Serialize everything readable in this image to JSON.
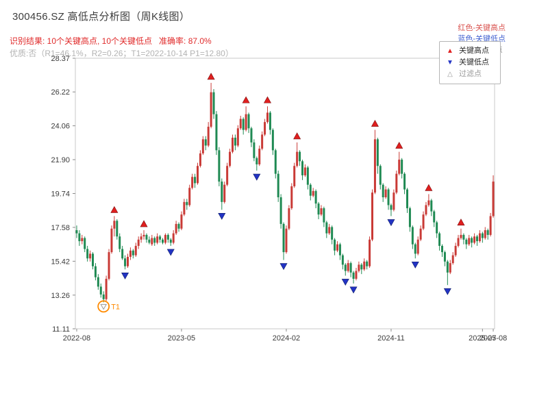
{
  "header": {
    "legend_high": "红色-关键高点",
    "legend_low": "蓝色-关键低点",
    "legend_filtered": "○浅色-过滤点",
    "result_line": "识别结果: 10个关键高点, 10个关键低点   准确率: 87.0%",
    "quality_line": "优质:否（R1=46.1%，R2=0.26；T1=2022-10-14 P1=12.80）",
    "colors": {
      "high_text": "#d9534f",
      "low_text": "#4161d0",
      "filtered_text": "#8c8c8c",
      "result_text": "#e02a2a",
      "quality_text": "#b3b3b3"
    }
  },
  "chart_data": {
    "type": "candlestick",
    "title": "300456.SZ 高低点分析图（周K线图）",
    "subtitle": "识别结果: 10个关键高点, 10个关键低点   准确率: 87.0%",
    "ylabel": "",
    "xlabel": "",
    "grid": false,
    "legend_position": "upper right",
    "ylim": [
      11.11,
      28.37
    ],
    "y_ticks": [
      11.11,
      13.26,
      15.42,
      17.58,
      19.74,
      21.9,
      24.06,
      26.22,
      28.37
    ],
    "x_ticks": [
      {
        "index": 0,
        "label": "2022-08"
      },
      {
        "index": 39,
        "label": "2023-05"
      },
      {
        "index": 78,
        "label": "2024-02"
      },
      {
        "index": 117,
        "label": "2024-11"
      },
      {
        "index": 151,
        "label": "2025-07"
      },
      {
        "index": 155,
        "label": "2025-08"
      }
    ],
    "colors": {
      "up": "#c93a36",
      "down": "#1f8a53",
      "high_marker": "#e01f1f",
      "low_marker": "#2233c4",
      "annotation": "#ff8a00",
      "axis_text": "#3a3a3a",
      "spine": "#c8c8c8"
    },
    "legend": {
      "items": [
        {
          "symbol": "▲",
          "label": "关键高点",
          "color": "#e01f1f"
        },
        {
          "symbol": "▼",
          "label": "关键低点",
          "color": "#2233c4"
        },
        {
          "symbol": "△",
          "label": "过滤点",
          "color": "#9a9a9a"
        }
      ]
    },
    "candles": [
      [
        17.4,
        17.7,
        16.9,
        17.2
      ],
      [
        17.2,
        17.4,
        16.4,
        16.7
      ],
      [
        16.7,
        17.1,
        16.5,
        16.9
      ],
      [
        16.9,
        17.0,
        16.0,
        16.2
      ],
      [
        16.2,
        16.4,
        15.4,
        15.6
      ],
      [
        15.6,
        16.1,
        15.4,
        15.9
      ],
      [
        15.9,
        16.0,
        14.9,
        15.1
      ],
      [
        15.1,
        15.3,
        14.2,
        14.4
      ],
      [
        14.4,
        14.6,
        13.6,
        13.8
      ],
      [
        13.8,
        14.0,
        13.1,
        13.3
      ],
      [
        13.3,
        13.5,
        12.8,
        13.0
      ],
      [
        13.0,
        14.5,
        12.9,
        14.3
      ],
      [
        14.3,
        16.2,
        14.2,
        16.0
      ],
      [
        16.0,
        17.7,
        15.9,
        17.5
      ],
      [
        17.5,
        18.3,
        17.0,
        18.0
      ],
      [
        18.0,
        18.1,
        16.8,
        17.0
      ],
      [
        17.0,
        17.2,
        16.0,
        16.2
      ],
      [
        16.2,
        16.4,
        15.5,
        15.6
      ],
      [
        15.6,
        15.8,
        14.9,
        15.1
      ],
      [
        15.1,
        15.9,
        15.0,
        15.7
      ],
      [
        15.7,
        16.3,
        15.5,
        16.1
      ],
      [
        16.1,
        16.2,
        15.6,
        15.8
      ],
      [
        15.8,
        16.6,
        15.7,
        16.4
      ],
      [
        16.4,
        17.0,
        16.2,
        16.8
      ],
      [
        16.8,
        17.2,
        16.6,
        17.0
      ],
      [
        17.0,
        17.4,
        16.8,
        17.1
      ],
      [
        17.1,
        17.2,
        16.6,
        16.8
      ],
      [
        16.8,
        17.0,
        16.5,
        16.6
      ],
      [
        16.5,
        17.1,
        16.4,
        16.9
      ],
      [
        16.9,
        17.0,
        16.4,
        16.6
      ],
      [
        16.6,
        17.2,
        16.5,
        17.0
      ],
      [
        17.0,
        17.1,
        16.6,
        16.8
      ],
      [
        16.8,
        16.9,
        16.5,
        16.6
      ],
      [
        16.6,
        17.2,
        16.5,
        17.1
      ],
      [
        17.1,
        17.2,
        16.6,
        16.8
      ],
      [
        16.8,
        16.9,
        16.4,
        16.6
      ],
      [
        16.6,
        17.4,
        16.5,
        17.2
      ],
      [
        17.2,
        18.0,
        17.1,
        17.8
      ],
      [
        17.8,
        17.9,
        17.3,
        17.5
      ],
      [
        17.5,
        18.6,
        17.4,
        18.4
      ],
      [
        18.4,
        19.4,
        18.3,
        19.2
      ],
      [
        19.2,
        19.4,
        18.7,
        19.0
      ],
      [
        19.0,
        20.3,
        18.9,
        20.1
      ],
      [
        20.1,
        21.0,
        20.0,
        20.8
      ],
      [
        20.8,
        21.0,
        20.1,
        20.4
      ],
      [
        20.4,
        21.7,
        20.3,
        21.5
      ],
      [
        21.5,
        22.5,
        21.4,
        22.3
      ],
      [
        22.3,
        23.4,
        22.2,
        23.2
      ],
      [
        23.2,
        23.4,
        22.5,
        22.8
      ],
      [
        22.8,
        24.3,
        22.7,
        24.0
      ],
      [
        24.0,
        26.8,
        23.9,
        26.2
      ],
      [
        26.2,
        26.4,
        24.5,
        24.8
      ],
      [
        24.8,
        25.0,
        22.2,
        22.5
      ],
      [
        22.5,
        22.7,
        20.2,
        20.5
      ],
      [
        20.5,
        20.7,
        18.7,
        19.2
      ],
      [
        19.2,
        20.5,
        19.1,
        20.3
      ],
      [
        20.3,
        21.7,
        20.2,
        21.5
      ],
      [
        21.5,
        22.6,
        21.4,
        22.4
      ],
      [
        22.4,
        23.5,
        22.3,
        23.3
      ],
      [
        23.3,
        23.5,
        22.5,
        22.8
      ],
      [
        22.8,
        24.1,
        22.7,
        23.9
      ],
      [
        23.9,
        24.7,
        23.8,
        24.5
      ],
      [
        24.5,
        24.6,
        23.5,
        23.8
      ],
      [
        23.8,
        25.3,
        23.7,
        24.8
      ],
      [
        24.8,
        24.9,
        23.6,
        23.9
      ],
      [
        23.9,
        24.0,
        22.7,
        23.0
      ],
      [
        23.0,
        23.2,
        21.8,
        22.0
      ],
      [
        22.0,
        22.1,
        21.2,
        21.6
      ],
      [
        21.6,
        22.8,
        21.5,
        22.6
      ],
      [
        22.6,
        23.7,
        22.5,
        23.5
      ],
      [
        23.5,
        24.5,
        23.4,
        24.3
      ],
      [
        24.3,
        25.3,
        24.2,
        24.9
      ],
      [
        24.9,
        25.0,
        23.5,
        23.8
      ],
      [
        23.8,
        23.9,
        22.2,
        22.5
      ],
      [
        22.5,
        22.6,
        20.7,
        21.0
      ],
      [
        21.0,
        21.2,
        19.2,
        19.5
      ],
      [
        19.5,
        19.7,
        17.5,
        17.8
      ],
      [
        17.8,
        17.9,
        15.5,
        16.0
      ],
      [
        16.0,
        17.7,
        15.9,
        17.5
      ],
      [
        17.5,
        19.0,
        17.4,
        18.8
      ],
      [
        18.8,
        20.4,
        18.7,
        20.2
      ],
      [
        20.2,
        21.7,
        20.1,
        21.5
      ],
      [
        21.5,
        23.0,
        21.4,
        22.4
      ],
      [
        22.4,
        22.5,
        21.5,
        21.8
      ],
      [
        21.8,
        21.9,
        20.6,
        20.9
      ],
      [
        20.9,
        21.6,
        20.8,
        21.4
      ],
      [
        21.4,
        21.5,
        20.0,
        20.3
      ],
      [
        20.3,
        20.4,
        19.3,
        19.6
      ],
      [
        19.6,
        20.1,
        19.5,
        19.9
      ],
      [
        19.9,
        20.0,
        18.8,
        19.1
      ],
      [
        19.1,
        19.2,
        18.1,
        18.4
      ],
      [
        18.4,
        19.0,
        18.3,
        18.8
      ],
      [
        18.8,
        18.9,
        17.6,
        17.9
      ],
      [
        17.9,
        18.0,
        16.9,
        17.2
      ],
      [
        17.2,
        17.8,
        17.1,
        17.6
      ],
      [
        17.6,
        17.7,
        16.5,
        16.8
      ],
      [
        16.8,
        16.9,
        15.8,
        16.1
      ],
      [
        16.1,
        16.7,
        16.0,
        16.5
      ],
      [
        16.5,
        16.6,
        15.5,
        15.8
      ],
      [
        15.8,
        15.9,
        14.9,
        15.2
      ],
      [
        15.2,
        15.3,
        14.5,
        14.8
      ],
      [
        14.8,
        15.5,
        14.7,
        15.3
      ],
      [
        15.3,
        15.4,
        14.4,
        14.7
      ],
      [
        14.7,
        14.8,
        14.0,
        14.3
      ],
      [
        14.3,
        15.0,
        14.2,
        14.8
      ],
      [
        14.8,
        15.4,
        14.7,
        15.2
      ],
      [
        15.2,
        15.3,
        14.6,
        14.9
      ],
      [
        14.9,
        15.6,
        14.8,
        15.4
      ],
      [
        15.4,
        15.5,
        14.9,
        15.1
      ],
      [
        15.1,
        17.0,
        15.0,
        16.8
      ],
      [
        16.8,
        20.0,
        16.7,
        19.8
      ],
      [
        19.8,
        23.8,
        19.7,
        23.2
      ],
      [
        23.2,
        23.3,
        21.0,
        21.5
      ],
      [
        21.5,
        21.6,
        20.0,
        20.3
      ],
      [
        20.3,
        20.4,
        19.2,
        19.5
      ],
      [
        19.5,
        20.2,
        19.4,
        20.0
      ],
      [
        20.0,
        20.1,
        18.7,
        19.0
      ],
      [
        19.0,
        19.1,
        18.3,
        18.7
      ],
      [
        18.7,
        20.0,
        18.6,
        19.8
      ],
      [
        19.8,
        21.2,
        19.7,
        21.0
      ],
      [
        21.0,
        22.4,
        20.9,
        21.9
      ],
      [
        21.9,
        22.0,
        20.7,
        21.0
      ],
      [
        21.0,
        21.1,
        19.7,
        20.0
      ],
      [
        20.0,
        20.1,
        18.5,
        18.8
      ],
      [
        18.8,
        18.9,
        17.3,
        17.6
      ],
      [
        17.6,
        17.7,
        16.2,
        16.5
      ],
      [
        16.5,
        16.6,
        15.6,
        15.9
      ],
      [
        15.9,
        17.0,
        15.8,
        16.8
      ],
      [
        16.8,
        17.7,
        16.7,
        17.5
      ],
      [
        17.5,
        18.6,
        17.4,
        18.4
      ],
      [
        18.4,
        19.2,
        18.3,
        19.0
      ],
      [
        19.0,
        19.7,
        18.9,
        19.3
      ],
      [
        19.3,
        19.4,
        18.3,
        18.6
      ],
      [
        18.6,
        18.7,
        17.6,
        17.9
      ],
      [
        17.9,
        18.0,
        16.9,
        17.2
      ],
      [
        17.2,
        17.3,
        16.1,
        16.4
      ],
      [
        16.4,
        16.5,
        15.7,
        16.0
      ],
      [
        16.0,
        16.1,
        15.1,
        15.4
      ],
      [
        15.4,
        15.5,
        13.9,
        14.7
      ],
      [
        14.7,
        15.5,
        14.6,
        15.3
      ],
      [
        15.3,
        16.0,
        15.2,
        15.8
      ],
      [
        15.8,
        16.6,
        15.7,
        16.4
      ],
      [
        16.4,
        17.1,
        16.3,
        16.9
      ],
      [
        16.9,
        17.5,
        16.8,
        17.1
      ],
      [
        17.1,
        17.2,
        16.5,
        16.8
      ],
      [
        16.8,
        16.9,
        16.2,
        16.5
      ],
      [
        16.5,
        17.1,
        16.4,
        16.9
      ],
      [
        16.9,
        17.0,
        16.3,
        16.6
      ],
      [
        16.6,
        17.2,
        16.5,
        17.0
      ],
      [
        17.0,
        17.1,
        16.4,
        16.7
      ],
      [
        16.7,
        17.4,
        16.6,
        17.2
      ],
      [
        17.2,
        17.3,
        16.6,
        16.9
      ],
      [
        16.9,
        17.6,
        16.8,
        17.4
      ],
      [
        17.4,
        17.5,
        16.8,
        17.1
      ],
      [
        17.1,
        18.5,
        17.0,
        18.3
      ],
      [
        18.3,
        20.9,
        18.2,
        20.5
      ]
    ],
    "key_highs": [
      14,
      25,
      50,
      63,
      71,
      82,
      111,
      120,
      131,
      143
    ],
    "key_lows": [
      18,
      35,
      54,
      67,
      77,
      100,
      103,
      117,
      126,
      138
    ],
    "filtered_points": [
      {
        "index": 10,
        "price": 12.8,
        "label": "T1"
      }
    ]
  }
}
